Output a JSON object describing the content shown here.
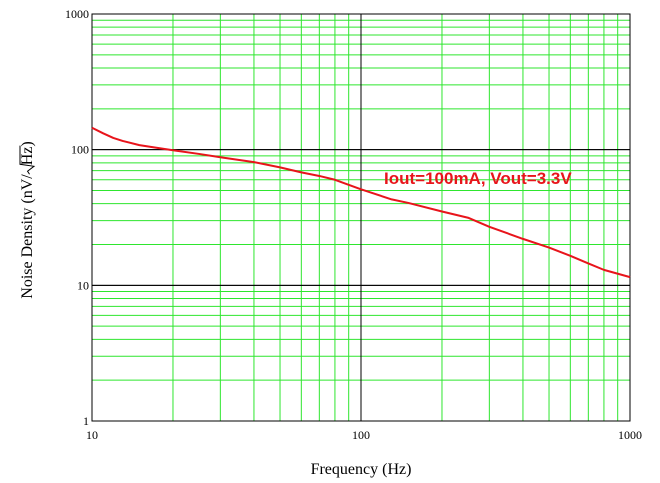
{
  "chart_data": {
    "type": "line",
    "xlabel": "Frequency (Hz)",
    "ylabel_prefix": "Noise Density (nV/",
    "ylabel_radicand": "Hz",
    "ylabel_suffix": ")",
    "x_scale": "log",
    "y_scale": "log",
    "xlim": [
      10,
      1000
    ],
    "ylim": [
      1,
      1000
    ],
    "x_ticks": [
      "10",
      "100",
      "1000"
    ],
    "y_ticks": [
      "1",
      "10",
      "100",
      "1000"
    ],
    "grid": true,
    "annotation": "Iout=100mA, Vout=3.3V",
    "colors": {
      "grid_minor": "#2ee62e",
      "grid_major": "#000000",
      "series": "#e8141b",
      "annotation": "#e8141b"
    },
    "series": [
      {
        "x": [
          10,
          11,
          12,
          13,
          15,
          17,
          20,
          25,
          30,
          40,
          50,
          60,
          70,
          80,
          100,
          130,
          150,
          200,
          250,
          300,
          400,
          500,
          600,
          700,
          800,
          1000
        ],
        "y": [
          145,
          132,
          122,
          116,
          108,
          104,
          99,
          93,
          88,
          81,
          74,
          68,
          64,
          60,
          51,
          43,
          40.5,
          35,
          31.5,
          27,
          22,
          19,
          16.5,
          14.5,
          13,
          11.5
        ]
      }
    ]
  }
}
